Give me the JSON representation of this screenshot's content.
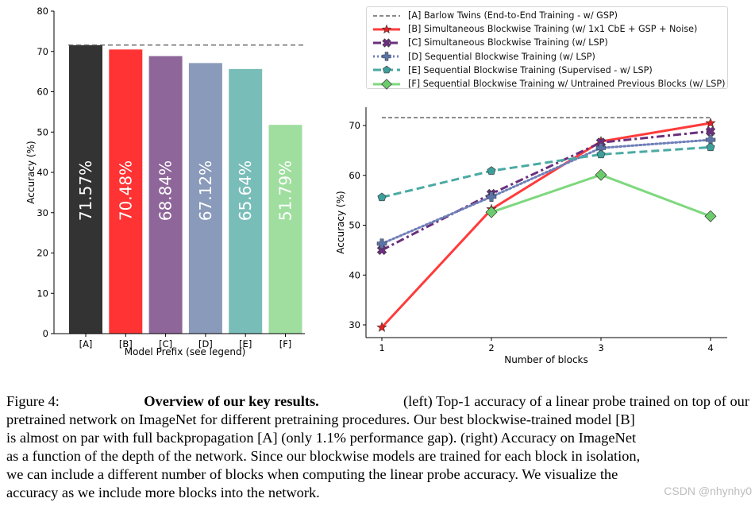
{
  "colors": {
    "A": "#333333",
    "B": "#ff3333",
    "C": "#8e6699",
    "D": "#8a9aba",
    "E": "#79bdb9",
    "F": "#9fde9f",
    "lineB": "#ff3b3b",
    "lineC": "#6b2f7d",
    "lineD": "#6f7fb8",
    "lineE": "#4aaaa3",
    "lineF": "#7ed87e"
  },
  "chart_data": [
    {
      "type": "bar",
      "xlabel": "Model Prefix (see legend)",
      "ylabel": "Accuracy (%)",
      "ylim": [
        0,
        80
      ],
      "yticks": [
        0,
        10,
        20,
        30,
        40,
        50,
        60,
        70,
        80
      ],
      "categories": [
        "[A]",
        "[B]",
        "[C]",
        "[D]",
        "[E]",
        "[F]"
      ],
      "values": [
        71.57,
        70.48,
        68.84,
        67.12,
        65.64,
        51.79
      ],
      "data_labels": [
        "71.57%",
        "70.48%",
        "68.84%",
        "67.12%",
        "65.64%",
        "51.79%"
      ],
      "reference_line": 71.57
    },
    {
      "type": "line",
      "xlabel": "Number of blocks",
      "ylabel": "Accuracy (%)",
      "xticks": [
        1,
        2,
        3,
        4
      ],
      "yticks": [
        30,
        40,
        50,
        60,
        70
      ],
      "ylim": [
        28,
        72.5
      ],
      "legend_position": "top",
      "series": [
        {
          "name": "[A] Barlow Twins (End-to-End Training - w/ GSP)",
          "x": [
            1,
            4
          ],
          "values": [
            71.57,
            71.57
          ],
          "style": "dashed",
          "marker": "none"
        },
        {
          "name": "[B] Simultaneous Blockwise Training (w/ 1x1 CbE + GSP + Noise)",
          "x": [
            1,
            2,
            3,
            4
          ],
          "values": [
            29.5,
            53.2,
            66.8,
            70.48
          ],
          "style": "solid",
          "marker": "star"
        },
        {
          "name": "[C] Simultaneous Blockwise Training (w/ LSP)",
          "x": [
            1,
            2,
            3,
            4
          ],
          "values": [
            45.0,
            56.3,
            66.6,
            68.84
          ],
          "style": "dashdot",
          "marker": "x"
        },
        {
          "name": "[D] Sequential Blockwise Training (w/ LSP)",
          "x": [
            1,
            2,
            3,
            4
          ],
          "values": [
            46.3,
            55.7,
            65.5,
            67.12
          ],
          "style": "dotted",
          "marker": "plus"
        },
        {
          "name": "[E] Sequential Blockwise Training (Supervised - w/ LSP)",
          "x": [
            1,
            2,
            3,
            4
          ],
          "values": [
            55.6,
            60.9,
            64.2,
            65.64
          ],
          "style": "dashed",
          "marker": "pentagon"
        },
        {
          "name": "[F] Sequential Blockwise Training w/ Untrained Previous Blocks (w/ LSP)",
          "x": [
            2,
            3,
            4
          ],
          "values": [
            52.6,
            60.1,
            51.79
          ],
          "style": "solid",
          "marker": "diamond"
        }
      ]
    }
  ],
  "caption": {
    "label": "Figure 4:",
    "bold": "Overview of our key results.",
    "lines": [
      "(left) Top-1 accuracy of a linear probe trained on top of our",
      "pretrained network on ImageNet for different pretraining procedures. Our best blockwise-trained model [B]",
      "is almost on par with full backpropagation [A] (only 1.1% performance gap). (right) Accuracy on ImageNet",
      "as a function of the depth of the network. Since our blockwise models are trained for each block in isolation,",
      "we can include a different number of blocks when computing the linear probe accuracy. We visualize the",
      "accuracy as we include more blocks into the network."
    ]
  },
  "watermark": "CSDN @nhynhy0"
}
